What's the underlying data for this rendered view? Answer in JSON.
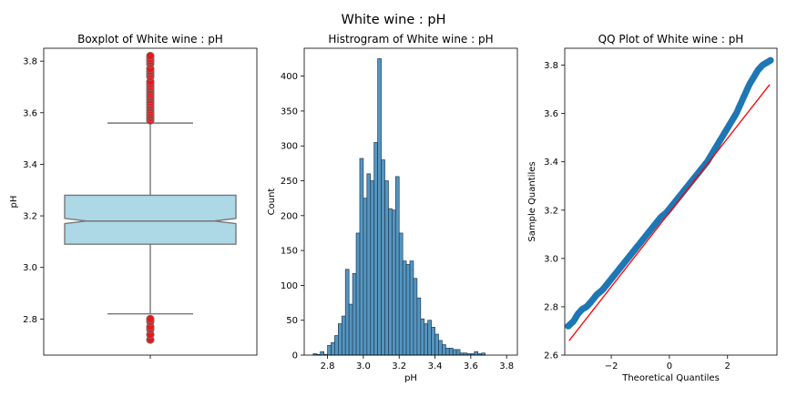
{
  "suptitle": "White wine : pH",
  "chart_data": [
    {
      "type": "box",
      "title": "Boxplot of White wine : pH",
      "xlabel": "",
      "ylabel": "pH",
      "ylim": [
        2.66,
        3.85
      ],
      "yticks": [
        2.8,
        3.0,
        3.2,
        3.4,
        3.6,
        3.8
      ],
      "box": {
        "whisker_low": 2.82,
        "q1": 3.09,
        "median": 3.18,
        "q3": 3.28,
        "whisker_high": 3.56,
        "notch_low": 3.17,
        "notch_high": 3.19
      },
      "outliers": [
        2.72,
        2.74,
        2.76,
        2.77,
        2.79,
        2.8,
        3.57,
        3.58,
        3.59,
        3.6,
        3.61,
        3.62,
        3.63,
        3.64,
        3.65,
        3.66,
        3.67,
        3.68,
        3.69,
        3.7,
        3.71,
        3.72,
        3.74,
        3.75,
        3.76,
        3.77,
        3.79,
        3.8,
        3.81,
        3.82
      ],
      "colors": {
        "box": "#add8e6",
        "outlier": "#e31a1c"
      }
    },
    {
      "type": "histogram",
      "title": "Histrogram of White wine : pH",
      "xlabel": "pH",
      "ylabel": "Count",
      "xlim": [
        2.67,
        3.86
      ],
      "ylim": [
        0,
        440
      ],
      "xticks": [
        2.8,
        3.0,
        3.2,
        3.4,
        3.6,
        3.8
      ],
      "yticks": [
        0,
        50,
        100,
        150,
        200,
        250,
        300,
        350,
        400
      ],
      "bin_start": 2.72,
      "bin_width": 0.02,
      "counts": [
        2,
        1,
        5,
        1,
        14,
        18,
        28,
        45,
        56,
        123,
        73,
        117,
        175,
        282,
        225,
        260,
        250,
        305,
        425,
        280,
        250,
        210,
        208,
        256,
        175,
        135,
        130,
        135,
        110,
        82,
        52,
        45,
        50,
        40,
        30,
        21,
        15,
        10,
        10,
        8,
        8,
        3,
        3,
        2,
        2,
        5,
        2,
        3
      ],
      "colors": {
        "bar": "#4c8fbd",
        "edge": "#1f3d55"
      }
    },
    {
      "type": "scatter",
      "title": "QQ Plot of White wine : pH",
      "xlabel": "Theoretical Quantiles",
      "ylabel": "Sample Quantiles",
      "xlim": [
        -3.6,
        3.7
      ],
      "ylim": [
        2.6,
        3.87
      ],
      "xticks": [
        -2,
        0,
        2
      ],
      "yticks": [
        2.6,
        2.8,
        3.0,
        3.2,
        3.4,
        3.6,
        3.8
      ],
      "reference_line": {
        "x": [
          -3.45,
          3.45
        ],
        "y": [
          2.66,
          3.72
        ]
      },
      "points": {
        "x": [
          -3.48,
          -3.3,
          -3.15,
          -3.0,
          -2.85,
          -2.7,
          -2.5,
          -2.3,
          -2.1,
          -1.9,
          -1.7,
          -1.5,
          -1.3,
          -1.1,
          -0.9,
          -0.7,
          -0.5,
          -0.3,
          -0.1,
          0.1,
          0.3,
          0.5,
          0.7,
          0.9,
          1.1,
          1.3,
          1.5,
          1.7,
          1.9,
          2.1,
          2.3,
          2.45,
          2.6,
          2.75,
          2.85,
          2.95,
          3.05,
          3.2,
          3.48
        ],
        "y": [
          2.72,
          2.74,
          2.77,
          2.79,
          2.8,
          2.82,
          2.85,
          2.87,
          2.9,
          2.93,
          2.96,
          2.99,
          3.02,
          3.05,
          3.08,
          3.11,
          3.14,
          3.17,
          3.19,
          3.22,
          3.25,
          3.28,
          3.31,
          3.34,
          3.37,
          3.4,
          3.44,
          3.48,
          3.52,
          3.56,
          3.6,
          3.64,
          3.68,
          3.72,
          3.74,
          3.76,
          3.78,
          3.8,
          3.82
        ]
      },
      "colors": {
        "point": "#1f77b4",
        "line": "#ff0000"
      }
    }
  ]
}
